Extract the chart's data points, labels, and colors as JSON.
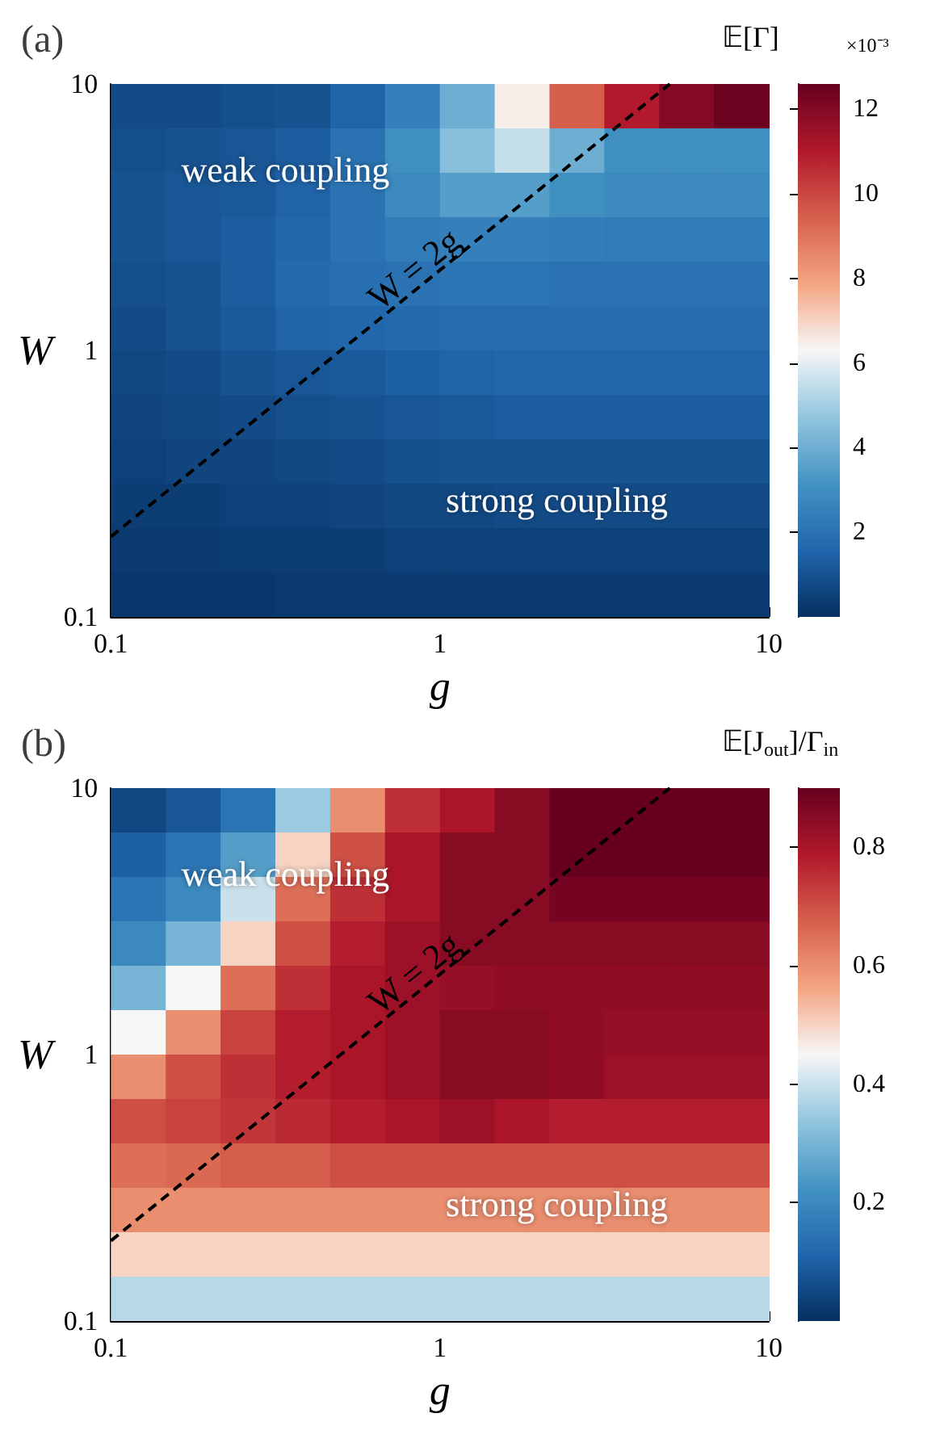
{
  "chart_data": [
    {
      "type": "heatmap",
      "title": "(a)",
      "xlabel": "g",
      "ylabel": "W",
      "clabel": "𝔼[Γ]",
      "log": "xy",
      "xlim": [
        0.1,
        10
      ],
      "ylim": [
        0.1,
        10
      ],
      "xticks": [
        0.1,
        1,
        10
      ],
      "yticks": [
        0.1,
        1,
        10
      ],
      "clim": [
        0,
        12.6
      ],
      "cticks": [
        2,
        4,
        6,
        8,
        10,
        12
      ],
      "cells": [
        [
          0.8,
          0.8,
          0.9,
          1.0,
          1.5,
          2.5,
          4,
          6.5,
          9.5,
          11,
          12,
          12.5
        ],
        [
          0.9,
          1,
          1.1,
          1.3,
          2,
          3,
          4.5,
          5.5,
          4,
          3,
          3,
          3
        ],
        [
          1,
          1.1,
          1.2,
          1.5,
          2,
          2.8,
          3.5,
          3.5,
          3,
          2.8,
          2.8,
          2.8
        ],
        [
          1,
          1.1,
          1.3,
          1.6,
          2,
          2.3,
          2.5,
          2.5,
          2.4,
          2.3,
          2.3,
          2.3
        ],
        [
          0.9,
          1,
          1.3,
          1.7,
          1.9,
          2,
          2.1,
          2.1,
          2,
          2,
          2,
          2
        ],
        [
          0.8,
          1,
          1.2,
          1.5,
          1.6,
          1.7,
          1.8,
          1.8,
          1.8,
          1.8,
          1.8,
          1.8
        ],
        [
          0.7,
          0.8,
          1,
          1.1,
          1.2,
          1.4,
          1.5,
          1.6,
          1.6,
          1.6,
          1.6,
          1.6
        ],
        [
          0.6,
          0.7,
          0.8,
          0.9,
          1,
          1.1,
          1.2,
          1.3,
          1.3,
          1.3,
          1.3,
          1.3
        ],
        [
          0.5,
          0.6,
          0.6,
          0.7,
          0.8,
          0.9,
          1,
          1,
          1,
          1,
          1,
          1
        ],
        [
          0.4,
          0.4,
          0.5,
          0.5,
          0.6,
          0.7,
          0.7,
          0.8,
          0.8,
          0.8,
          0.8,
          0.8
        ],
        [
          0.3,
          0.3,
          0.4,
          0.4,
          0.4,
          0.5,
          0.5,
          0.5,
          0.5,
          0.5,
          0.5,
          0.5
        ],
        [
          0.2,
          0.2,
          0.2,
          0.3,
          0.3,
          0.3,
          0.3,
          0.3,
          0.3,
          0.3,
          0.3,
          0.3
        ]
      ],
      "series": [
        {
          "type": "line",
          "x": [
            0.1,
            0.5,
            1,
            5
          ],
          "values": [
            0.2,
            1,
            2,
            10
          ],
          "color": "#000000",
          "line_style": "dashed",
          "marker": "none"
        }
      ],
      "annotations": [
        "weak coupling",
        "strong coupling",
        {
          "text": "W = 2g",
          "x": 0.9,
          "y": 1.8
        },
        "×10⁻³"
      ]
    },
    {
      "type": "heatmap",
      "title": "(b)",
      "xlabel": "g",
      "ylabel": "W",
      "clabel": "𝔼[J$_{out}$]/Γ$_{in}$",
      "log": "xy",
      "xlim": [
        0.1,
        10
      ],
      "ylim": [
        0.1,
        10
      ],
      "xticks": [
        0.1,
        1,
        10
      ],
      "yticks": [
        0.1,
        1,
        10
      ],
      "clim": [
        0,
        0.9
      ],
      "cticks": [
        0.2,
        0.4,
        0.6,
        0.8
      ],
      "cells": [
        [
          0.05,
          0.08,
          0.15,
          0.35,
          0.6,
          0.75,
          0.8,
          0.85,
          0.9,
          0.9,
          0.9,
          0.9
        ],
        [
          0.1,
          0.15,
          0.25,
          0.5,
          0.7,
          0.8,
          0.85,
          0.85,
          0.9,
          0.9,
          0.9,
          0.9
        ],
        [
          0.15,
          0.2,
          0.4,
          0.65,
          0.75,
          0.8,
          0.85,
          0.85,
          0.88,
          0.88,
          0.88,
          0.88
        ],
        [
          0.2,
          0.3,
          0.5,
          0.7,
          0.78,
          0.82,
          0.85,
          0.85,
          0.85,
          0.85,
          0.85,
          0.85
        ],
        [
          0.3,
          0.45,
          0.65,
          0.75,
          0.8,
          0.82,
          0.83,
          0.84,
          0.84,
          0.84,
          0.84,
          0.84
        ],
        [
          0.45,
          0.6,
          0.72,
          0.78,
          0.8,
          0.82,
          0.85,
          0.85,
          0.84,
          0.83,
          0.83,
          0.83
        ],
        [
          0.6,
          0.7,
          0.75,
          0.78,
          0.8,
          0.82,
          0.85,
          0.85,
          0.84,
          0.82,
          0.82,
          0.82
        ],
        [
          0.7,
          0.72,
          0.74,
          0.76,
          0.78,
          0.8,
          0.82,
          0.8,
          0.78,
          0.78,
          0.78,
          0.78
        ],
        [
          0.65,
          0.66,
          0.68,
          0.68,
          0.7,
          0.7,
          0.7,
          0.7,
          0.7,
          0.7,
          0.7,
          0.7
        ],
        [
          0.6,
          0.6,
          0.6,
          0.6,
          0.6,
          0.6,
          0.6,
          0.6,
          0.6,
          0.6,
          0.6,
          0.6
        ],
        [
          0.5,
          0.5,
          0.5,
          0.5,
          0.5,
          0.5,
          0.5,
          0.5,
          0.5,
          0.5,
          0.5,
          0.5
        ],
        [
          0.38,
          0.38,
          0.38,
          0.38,
          0.38,
          0.38,
          0.38,
          0.38,
          0.38,
          0.38,
          0.38,
          0.38
        ]
      ],
      "series": [
        {
          "type": "line",
          "x": [
            0.1,
            0.5,
            1,
            5
          ],
          "values": [
            0.2,
            1,
            2,
            10
          ],
          "color": "#000000",
          "line_style": "dashed",
          "marker": "none"
        }
      ],
      "annotations": [
        "weak coupling",
        "strong coupling",
        {
          "text": "W = 2g",
          "x": 0.9,
          "y": 1.8
        }
      ]
    }
  ]
}
